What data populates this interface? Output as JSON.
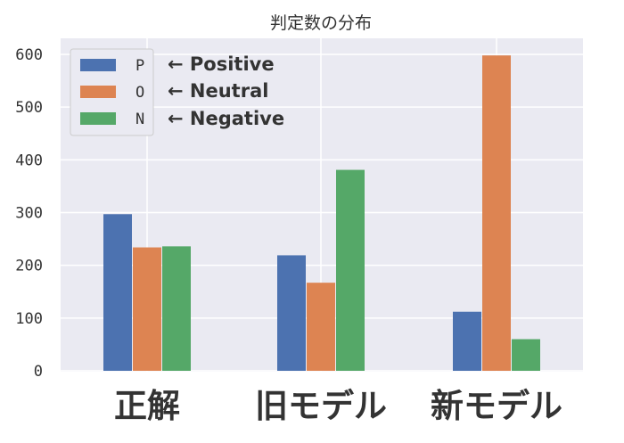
{
  "chart_data": {
    "type": "bar",
    "title": "判定数の分布",
    "categories": [
      "正解",
      "旧モデル",
      "新モデル"
    ],
    "series": [
      {
        "name": "P",
        "values": [
          297,
          219,
          112
        ],
        "color": "#4c72b0"
      },
      {
        "name": "O",
        "values": [
          234,
          167,
          598
        ],
        "color": "#dd8452"
      },
      {
        "name": "N",
        "values": [
          236,
          381,
          60
        ],
        "color": "#55a868"
      }
    ],
    "yticks": [
      0,
      100,
      200,
      300,
      400,
      500,
      600
    ],
    "ylim": [
      0,
      630
    ],
    "grid": true,
    "legend_position": "top-left",
    "legend_annotations": [
      "← Positive",
      "← Neutral",
      "← Negative"
    ]
  },
  "colors": {
    "plot_background": "#eaeaf2",
    "grid": "#ffffff"
  }
}
